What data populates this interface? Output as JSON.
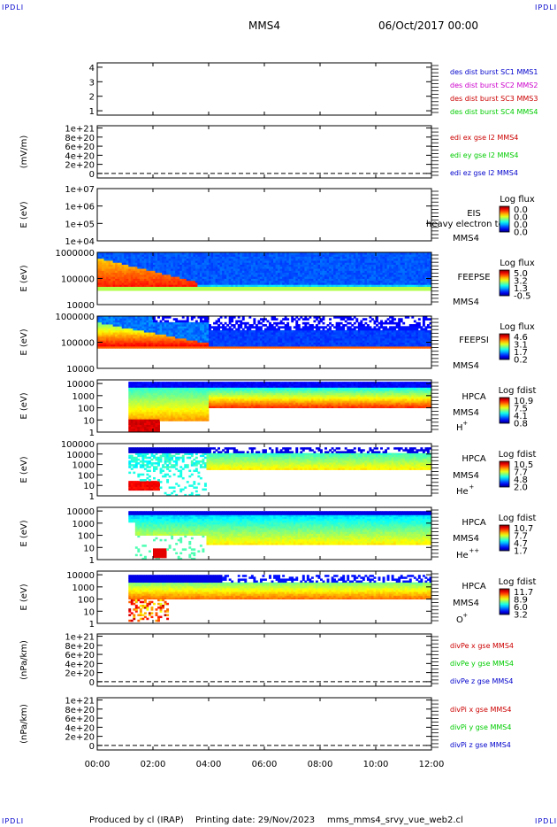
{
  "header": {
    "mission": "MMS4",
    "date": "06/Oct/2017 00:00",
    "corner_tl": "IPDLI",
    "corner_tr": "IPDLI",
    "corner_bl": "IPDLI",
    "corner_br": "IPDLI"
  },
  "footer": {
    "produced_by": "Produced by cl (IRAP)",
    "printing_date": "Printing date: 29/Nov/2023",
    "script": "mms_mms4_srvy_vue_web2.cl"
  },
  "time_axis": {
    "ticks": [
      "00:00",
      "02:00",
      "04:00",
      "06:00",
      "08:00",
      "10:00",
      "12:00"
    ],
    "range_hours": [
      0,
      12
    ]
  },
  "colors": {
    "red": "#cc0000",
    "green": "#00cc00",
    "blue": "#0000cc",
    "magenta": "#cc00cc",
    "frame": "#000000",
    "dashed": "#000000"
  },
  "chart_data": [
    {
      "type": "line",
      "id": "p1",
      "ylabel": "",
      "yticks": [
        "1",
        "2",
        "3",
        "4"
      ],
      "ylim": [
        0.7,
        4.3
      ],
      "legend": [
        "des dist burst SC1 MMS1",
        "des dist burst SC2 MMS2",
        "des dist burst SC3 MMS3",
        "des dist burst SC4 MMS4"
      ],
      "legend_colors": [
        "#0000cc",
        "#cc00cc",
        "#cc0000",
        "#00cc00"
      ],
      "series": []
    },
    {
      "type": "line",
      "id": "p2",
      "ylabel": "(mV/m)",
      "yticks": [
        "0",
        "2e+20",
        "4e+20",
        "6e+20",
        "8e+20",
        "1e+21"
      ],
      "ylim": [
        -1e+20,
        1.05e+21
      ],
      "legend": [
        "edi ex gse l2 MMS4",
        "edi ey gse l2 MMS4",
        "edi ez gse l2 MMS4"
      ],
      "legend_colors": [
        "#cc0000",
        "#00cc00",
        "#0000cc"
      ],
      "series": []
    },
    {
      "type": "heatmap",
      "id": "p3",
      "ylabel": "E (eV)",
      "yticks": [
        "1e+04",
        "1e+05",
        "1e+06",
        "1e+07"
      ],
      "ylog": [
        4,
        7
      ],
      "instrument": "EIS",
      "overlay_text": "heavy electron to",
      "spacecraft": "MMS4",
      "cbar_title": "Log flux",
      "cbar_ticks": [
        "0.0",
        "0.0",
        "0.0",
        "0.0"
      ]
    },
    {
      "type": "heatmap",
      "id": "p4",
      "ylabel": "E (eV)",
      "yticks": [
        "10000",
        "100000",
        "1000000"
      ],
      "ylog": [
        4,
        6
      ],
      "instrument": "FEEPSE",
      "spacecraft": "MMS4",
      "cbar_title": "Log flux",
      "cbar_ticks": [
        "5.0",
        "3.2",
        "1.3",
        "-0.5"
      ]
    },
    {
      "type": "heatmap",
      "id": "p5",
      "ylabel": "E (eV)",
      "yticks": [
        "10000",
        "100000",
        "1000000"
      ],
      "ylog": [
        4,
        6
      ],
      "instrument": "FEEPSI",
      "spacecraft": "MMS4",
      "cbar_title": "Log flux",
      "cbar_ticks": [
        "4.6",
        "3.1",
        "1.7",
        "0.2"
      ]
    },
    {
      "type": "heatmap",
      "id": "p6",
      "ylabel": "E (eV)",
      "yticks": [
        "1",
        "10",
        "100",
        "1000",
        "10000"
      ],
      "ylog": [
        0,
        4.3
      ],
      "instrument": "HPCA",
      "spacecraft": "MMS4",
      "species": "H",
      "species_charge": "+",
      "cbar_title": "Log fdist",
      "cbar_ticks": [
        "10.9",
        "7.5",
        "4.1",
        "0.8"
      ]
    },
    {
      "type": "heatmap",
      "id": "p7",
      "ylabel": "E (eV)",
      "yticks": [
        "1",
        "10",
        "100",
        "1000",
        "10000",
        "100000"
      ],
      "ylog": [
        0,
        5
      ],
      "instrument": "HPCA",
      "spacecraft": "MMS4",
      "species": "He",
      "species_charge": "+",
      "cbar_title": "Log fdist",
      "cbar_ticks": [
        "10.5",
        "7.7",
        "4.8",
        "2.0"
      ]
    },
    {
      "type": "heatmap",
      "id": "p8",
      "ylabel": "E (eV)",
      "yticks": [
        "1",
        "10",
        "100",
        "1000",
        "10000"
      ],
      "ylog": [
        0,
        4.3
      ],
      "instrument": "HPCA",
      "spacecraft": "MMS4",
      "species": "He",
      "species_charge": "++",
      "cbar_title": "Log fdist",
      "cbar_ticks": [
        "10.7",
        "7.7",
        "4.7",
        "1.7"
      ]
    },
    {
      "type": "heatmap",
      "id": "p9",
      "ylabel": "E (eV)",
      "yticks": [
        "1",
        "10",
        "100",
        "1000",
        "10000"
      ],
      "ylog": [
        0,
        4.3
      ],
      "instrument": "HPCA",
      "spacecraft": "MMS4",
      "species": "O",
      "species_charge": "+",
      "cbar_title": "Log fdist",
      "cbar_ticks": [
        "11.7",
        "8.9",
        "6.0",
        "3.2"
      ]
    },
    {
      "type": "line",
      "id": "p10",
      "ylabel": "(nPa/km)",
      "yticks": [
        "0",
        "2e+20",
        "4e+20",
        "6e+20",
        "8e+20",
        "1e+21"
      ],
      "ylim": [
        -1e+20,
        1.05e+21
      ],
      "legend": [
        "divPe x gse MMS4",
        "divPe y gse MMS4",
        "divPe z gse MMS4"
      ],
      "legend_colors": [
        "#cc0000",
        "#00cc00",
        "#0000cc"
      ],
      "series": []
    },
    {
      "type": "line",
      "id": "p11",
      "ylabel": "(nPa/km)",
      "yticks": [
        "0",
        "2e+20",
        "4e+20",
        "6e+20",
        "8e+20",
        "1e+21"
      ],
      "ylim": [
        -1e+20,
        1.05e+21
      ],
      "legend": [
        "divPi x gse MMS4",
        "divPi y gse MMS4",
        "divPi z gse MMS4"
      ],
      "legend_colors": [
        "#cc0000",
        "#00cc00",
        "#0000cc"
      ],
      "series": []
    }
  ]
}
